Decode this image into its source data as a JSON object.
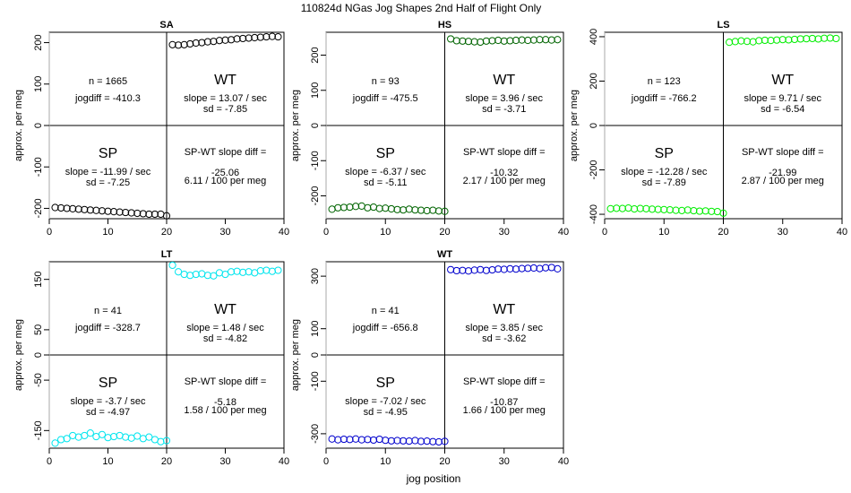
{
  "title": "110824d   NGas Jog Shapes 2nd Half of Flight Only",
  "xlabel": "jog position",
  "ylabel": "approx. per meg",
  "chart_data": [
    {
      "type": "scatter",
      "title": "SA",
      "color": "#000000",
      "xlim": [
        0,
        40
      ],
      "ylim": [
        -225,
        225
      ],
      "xticks": [
        0,
        10,
        20,
        30,
        40
      ],
      "yticks": [
        -200,
        -100,
        0,
        100,
        200
      ],
      "x": [
        1,
        2,
        3,
        4,
        5,
        6,
        7,
        8,
        9,
        10,
        11,
        12,
        13,
        14,
        15,
        16,
        17,
        18,
        19,
        20,
        21,
        22,
        23,
        24,
        25,
        26,
        27,
        28,
        29,
        30,
        31,
        32,
        33,
        34,
        35,
        36,
        37,
        38,
        39
      ],
      "y": [
        -198,
        -199,
        -200,
        -201,
        -202,
        -203,
        -204,
        -205,
        -206,
        -207,
        -208,
        -209,
        -210,
        -211,
        -212,
        -213,
        -214,
        -214,
        -214,
        -218,
        195,
        194,
        195,
        197,
        199,
        200,
        202,
        203,
        205,
        206,
        207,
        209,
        210,
        211,
        212,
        213,
        214,
        215,
        214
      ],
      "stats": {
        "n": "n = 1665",
        "jogdiff": "jogdiff = -410.3",
        "wt_label": "WT",
        "wt_slope": "slope = 13.07 / sec",
        "wt_sd": "sd = -7.85",
        "sp_label": "SP",
        "sp_slope": "slope = -11.99 / sec",
        "sp_sd": "sd = -7.25",
        "diff_label": "SP-WT slope diff =",
        "diff_value": "-25.06",
        "diff_permeg": "6.11 / 100 per meg"
      }
    },
    {
      "type": "scatter",
      "title": "HS",
      "color": "#006400",
      "xlim": [
        0,
        40
      ],
      "ylim": [
        -265,
        265
      ],
      "xticks": [
        0,
        10,
        20,
        30,
        40
      ],
      "yticks": [
        -200,
        -100,
        0,
        100,
        200
      ],
      "x": [
        1,
        2,
        3,
        4,
        5,
        6,
        7,
        8,
        9,
        10,
        11,
        12,
        13,
        14,
        15,
        16,
        17,
        18,
        19,
        20,
        21,
        22,
        23,
        24,
        25,
        26,
        27,
        28,
        29,
        30,
        31,
        32,
        33,
        34,
        35,
        36,
        37,
        38,
        39
      ],
      "y": [
        -238,
        -234,
        -233,
        -232,
        -230,
        -229,
        -234,
        -232,
        -236,
        -235,
        -237,
        -239,
        -240,
        -238,
        -240,
        -241,
        -242,
        -241,
        -243,
        -244,
        246,
        241,
        240,
        239,
        238,
        237,
        240,
        241,
        242,
        240,
        241,
        242,
        243,
        242,
        243,
        244,
        244,
        243,
        244
      ],
      "stats": {
        "n": "n = 93",
        "jogdiff": "jogdiff = -475.5",
        "wt_label": "WT",
        "wt_slope": "slope = 3.96 / sec",
        "wt_sd": "sd = -3.71",
        "sp_label": "SP",
        "sp_slope": "slope = -6.37 / sec",
        "sp_sd": "sd = -5.11",
        "diff_label": "SP-WT slope diff =",
        "diff_value": "-10.32",
        "diff_permeg": "2.17 / 100 per meg"
      }
    },
    {
      "type": "scatter",
      "title": "LS",
      "color": "#00ee00",
      "xlim": [
        0,
        40
      ],
      "ylim": [
        -420,
        420
      ],
      "xticks": [
        0,
        10,
        20,
        30,
        40
      ],
      "yticks": [
        -400,
        -200,
        0,
        200,
        400
      ],
      "x": [
        1,
        2,
        3,
        4,
        5,
        6,
        7,
        8,
        9,
        10,
        11,
        12,
        13,
        14,
        15,
        16,
        17,
        18,
        19,
        20,
        21,
        22,
        23,
        24,
        25,
        26,
        27,
        28,
        29,
        30,
        31,
        32,
        33,
        34,
        35,
        36,
        37,
        38,
        39
      ],
      "y": [
        -375,
        -373,
        -374,
        -372,
        -376,
        -374,
        -375,
        -377,
        -378,
        -379,
        -380,
        -382,
        -383,
        -381,
        -384,
        -386,
        -385,
        -387,
        -388,
        -395,
        375,
        378,
        381,
        379,
        377,
        382,
        384,
        383,
        385,
        387,
        386,
        388,
        390,
        391,
        392,
        390,
        393,
        394,
        392
      ],
      "stats": {
        "n": "n = 123",
        "jogdiff": "jogdiff = -766.2",
        "wt_label": "WT",
        "wt_slope": "slope = 9.71 / sec",
        "wt_sd": "sd = -6.54",
        "sp_label": "SP",
        "sp_slope": "slope = -12.28 / sec",
        "sp_sd": "sd = -7.89",
        "diff_label": "SP-WT slope diff =",
        "diff_value": "-21.99",
        "diff_permeg": "2.87 / 100 per meg"
      }
    },
    {
      "type": "scatter",
      "title": "LT",
      "color": "#00e5ee",
      "xlim": [
        0,
        40
      ],
      "ylim": [
        -185,
        185
      ],
      "xticks": [
        0,
        10,
        20,
        30,
        40
      ],
      "yticks": [
        -150,
        -50,
        0,
        50,
        150
      ],
      "x": [
        1,
        2,
        3,
        4,
        5,
        6,
        7,
        8,
        9,
        10,
        11,
        12,
        13,
        14,
        15,
        16,
        17,
        18,
        19,
        20,
        21,
        22,
        23,
        24,
        25,
        26,
        27,
        28,
        29,
        30,
        31,
        32,
        33,
        34,
        35,
        36,
        37,
        38,
        39
      ],
      "y": [
        -175,
        -168,
        -166,
        -160,
        -163,
        -160,
        -155,
        -162,
        -158,
        -164,
        -162,
        -160,
        -163,
        -165,
        -161,
        -166,
        -163,
        -168,
        -172,
        -170,
        178,
        165,
        160,
        158,
        160,
        161,
        158,
        157,
        163,
        160,
        165,
        166,
        164,
        165,
        163,
        167,
        168,
        166,
        168
      ],
      "stats": {
        "n": "n = 41",
        "jogdiff": "jogdiff = -328.7",
        "wt_label": "WT",
        "wt_slope": "slope = 1.48 / sec",
        "wt_sd": "sd = -4.82",
        "sp_label": "SP",
        "sp_slope": "slope = -3.7 / sec",
        "sp_sd": "sd = -4.97",
        "diff_label": "SP-WT slope diff =",
        "diff_value": "-5.18",
        "diff_permeg": "1.58 / 100 per meg"
      }
    },
    {
      "type": "scatter",
      "title": "WT",
      "color": "#0000cd",
      "xlim": [
        0,
        40
      ],
      "ylim": [
        -355,
        355
      ],
      "xticks": [
        0,
        10,
        20,
        30,
        40
      ],
      "yticks": [
        -300,
        -100,
        0,
        100,
        300
      ],
      "x": [
        1,
        2,
        3,
        4,
        5,
        6,
        7,
        8,
        9,
        10,
        11,
        12,
        13,
        14,
        15,
        16,
        17,
        18,
        19,
        20,
        21,
        22,
        23,
        24,
        25,
        26,
        27,
        28,
        29,
        30,
        31,
        32,
        33,
        34,
        35,
        36,
        37,
        38,
        39
      ],
      "y": [
        -320,
        -323,
        -321,
        -322,
        -320,
        -323,
        -322,
        -324,
        -321,
        -325,
        -327,
        -326,
        -327,
        -328,
        -326,
        -329,
        -328,
        -330,
        -331,
        -329,
        325,
        321,
        322,
        320,
        323,
        325,
        322,
        324,
        327,
        326,
        328,
        327,
        329,
        330,
        331,
        329,
        332,
        333,
        328
      ],
      "stats": {
        "n": "n = 41",
        "jogdiff": "jogdiff = -656.8",
        "wt_label": "WT",
        "wt_slope": "slope = 3.85 / sec",
        "wt_sd": "sd = -3.62",
        "sp_label": "SP",
        "sp_slope": "slope = -7.02 / sec",
        "sp_sd": "sd = -4.95",
        "diff_label": "SP-WT slope diff =",
        "diff_value": "-10.87",
        "diff_permeg": "1.66 / 100 per meg"
      }
    }
  ]
}
